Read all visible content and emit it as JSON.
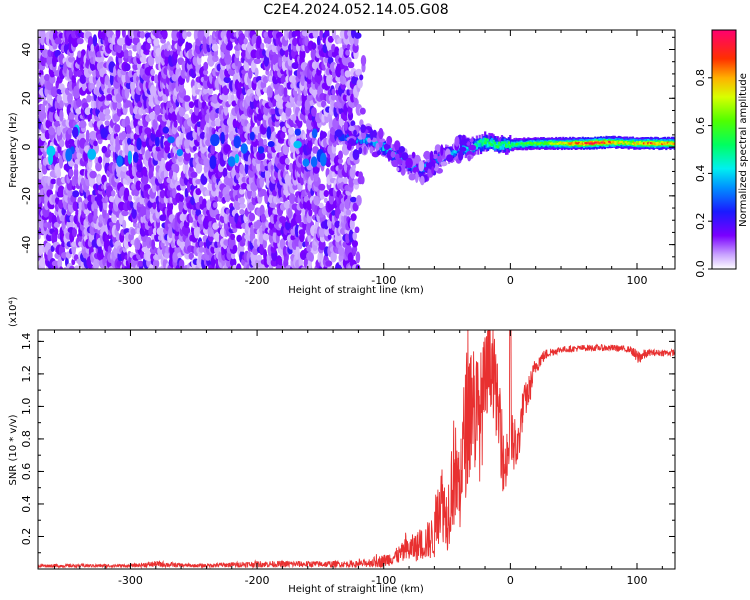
{
  "figure_title": "C2E4.2024.052.14.05.G08",
  "chart_data": [
    {
      "type": "heatmap",
      "xlabel": "Height of straight line (km)",
      "ylabel": "Frequency (Hz)",
      "xlim": [
        -373,
        130
      ],
      "ylim": [
        -50,
        48
      ],
      "x_ticks": [
        -300,
        -200,
        -100,
        0,
        100
      ],
      "x_tick_labels": [
        "-300",
        "-200",
        "-100",
        "0",
        "100"
      ],
      "y_ticks": [
        -40,
        -20,
        0,
        20,
        40
      ],
      "y_tick_labels": [
        "-40",
        "-20",
        "0",
        "20",
        "40"
      ],
      "colorbar": {
        "label": "Normalized spectral amplitude",
        "range": [
          0,
          1
        ],
        "ticks": [
          0,
          0.2,
          0.4,
          0.6,
          0.8
        ],
        "tick_labels": [
          "0.0",
          "0.2",
          "0.4",
          "0.6",
          "0.8"
        ],
        "colormap": "rainbow"
      },
      "noise_region_x": [
        -373,
        -115
      ],
      "signal_trace": [
        {
          "x": -130,
          "y": 4
        },
        {
          "x": -110,
          "y": 3
        },
        {
          "x": -100,
          "y": 0
        },
        {
          "x": -90,
          "y": -4
        },
        {
          "x": -80,
          "y": -7
        },
        {
          "x": -70,
          "y": -9
        },
        {
          "x": -60,
          "y": -6
        },
        {
          "x": -50,
          "y": -3
        },
        {
          "x": -40,
          "y": -1
        },
        {
          "x": -30,
          "y": 0
        },
        {
          "x": -20,
          "y": 2
        },
        {
          "x": -10,
          "y": 1
        },
        {
          "x": 0,
          "y": 1
        },
        {
          "x": 20,
          "y": 1.5
        },
        {
          "x": 40,
          "y": 1.5
        },
        {
          "x": 60,
          "y": 1.5
        },
        {
          "x": 80,
          "y": 2
        },
        {
          "x": 100,
          "y": 1.5
        },
        {
          "x": 130,
          "y": 1.5
        }
      ],
      "trace_peak_amplitude": [
        {
          "x": -130,
          "a": 0.3
        },
        {
          "x": -100,
          "a": 0.45
        },
        {
          "x": -80,
          "a": 0.4
        },
        {
          "x": -60,
          "a": 0.35
        },
        {
          "x": -40,
          "a": 0.4
        },
        {
          "x": -20,
          "a": 0.55
        },
        {
          "x": 0,
          "a": 0.55
        },
        {
          "x": 30,
          "a": 0.65
        },
        {
          "x": 50,
          "a": 0.8
        },
        {
          "x": 70,
          "a": 0.95
        },
        {
          "x": 90,
          "a": 0.7
        },
        {
          "x": 110,
          "a": 0.85
        },
        {
          "x": 130,
          "a": 0.8
        }
      ]
    },
    {
      "type": "line",
      "xlabel": "Height of straight line (km)",
      "ylabel": "SNR (10 * v/v)",
      "y_scale_label": "(x10⁴)",
      "xlim": [
        -373,
        130
      ],
      "ylim": [
        0,
        1.47
      ],
      "x_ticks": [
        -300,
        -200,
        -100,
        0,
        100
      ],
      "x_tick_labels": [
        "-300",
        "-200",
        "-100",
        "0",
        "100"
      ],
      "y_ticks": [
        0.2,
        0.4,
        0.6,
        0.8,
        1.0,
        1.2,
        1.4
      ],
      "y_tick_labels": [
        "0.2",
        "0.4",
        "0.6",
        "0.8",
        "1.0",
        "1.2",
        "1.4"
      ],
      "line_color": "#e83030",
      "series": [
        {
          "x": [
            -373,
            -300,
            -280,
            -250,
            -200,
            -150,
            -120,
            -100,
            -90,
            -80,
            -70,
            -60,
            -55,
            -50,
            -45,
            -40,
            -35,
            -30,
            -25,
            -20,
            -15,
            -10,
            -5,
            0,
            5,
            10,
            15,
            20,
            25,
            30,
            40,
            60,
            80,
            95,
            100,
            110,
            130
          ],
          "y": [
            0.02,
            0.02,
            0.03,
            0.02,
            0.03,
            0.03,
            0.03,
            0.05,
            0.08,
            0.12,
            0.15,
            0.2,
            0.45,
            0.3,
            0.6,
            0.5,
            0.9,
            1.05,
            0.9,
            1.1,
            1.3,
            1.0,
            0.6,
            0.8,
            0.7,
            1.0,
            1.1,
            1.25,
            1.3,
            1.33,
            1.35,
            1.36,
            1.36,
            1.35,
            1.3,
            1.33,
            1.33
          ],
          "noise_envelope": [
            0.01,
            0.01,
            0.02,
            0.01,
            0.02,
            0.02,
            0.02,
            0.04,
            0.05,
            0.08,
            0.1,
            0.14,
            0.25,
            0.2,
            0.35,
            0.3,
            0.45,
            0.45,
            0.4,
            0.35,
            0.3,
            0.25,
            0.2,
            0.2,
            0.15,
            0.12,
            0.1,
            0.06,
            0.04,
            0.03,
            0.02,
            0.02,
            0.02,
            0.02,
            0.05,
            0.02,
            0.02
          ]
        }
      ]
    }
  ]
}
